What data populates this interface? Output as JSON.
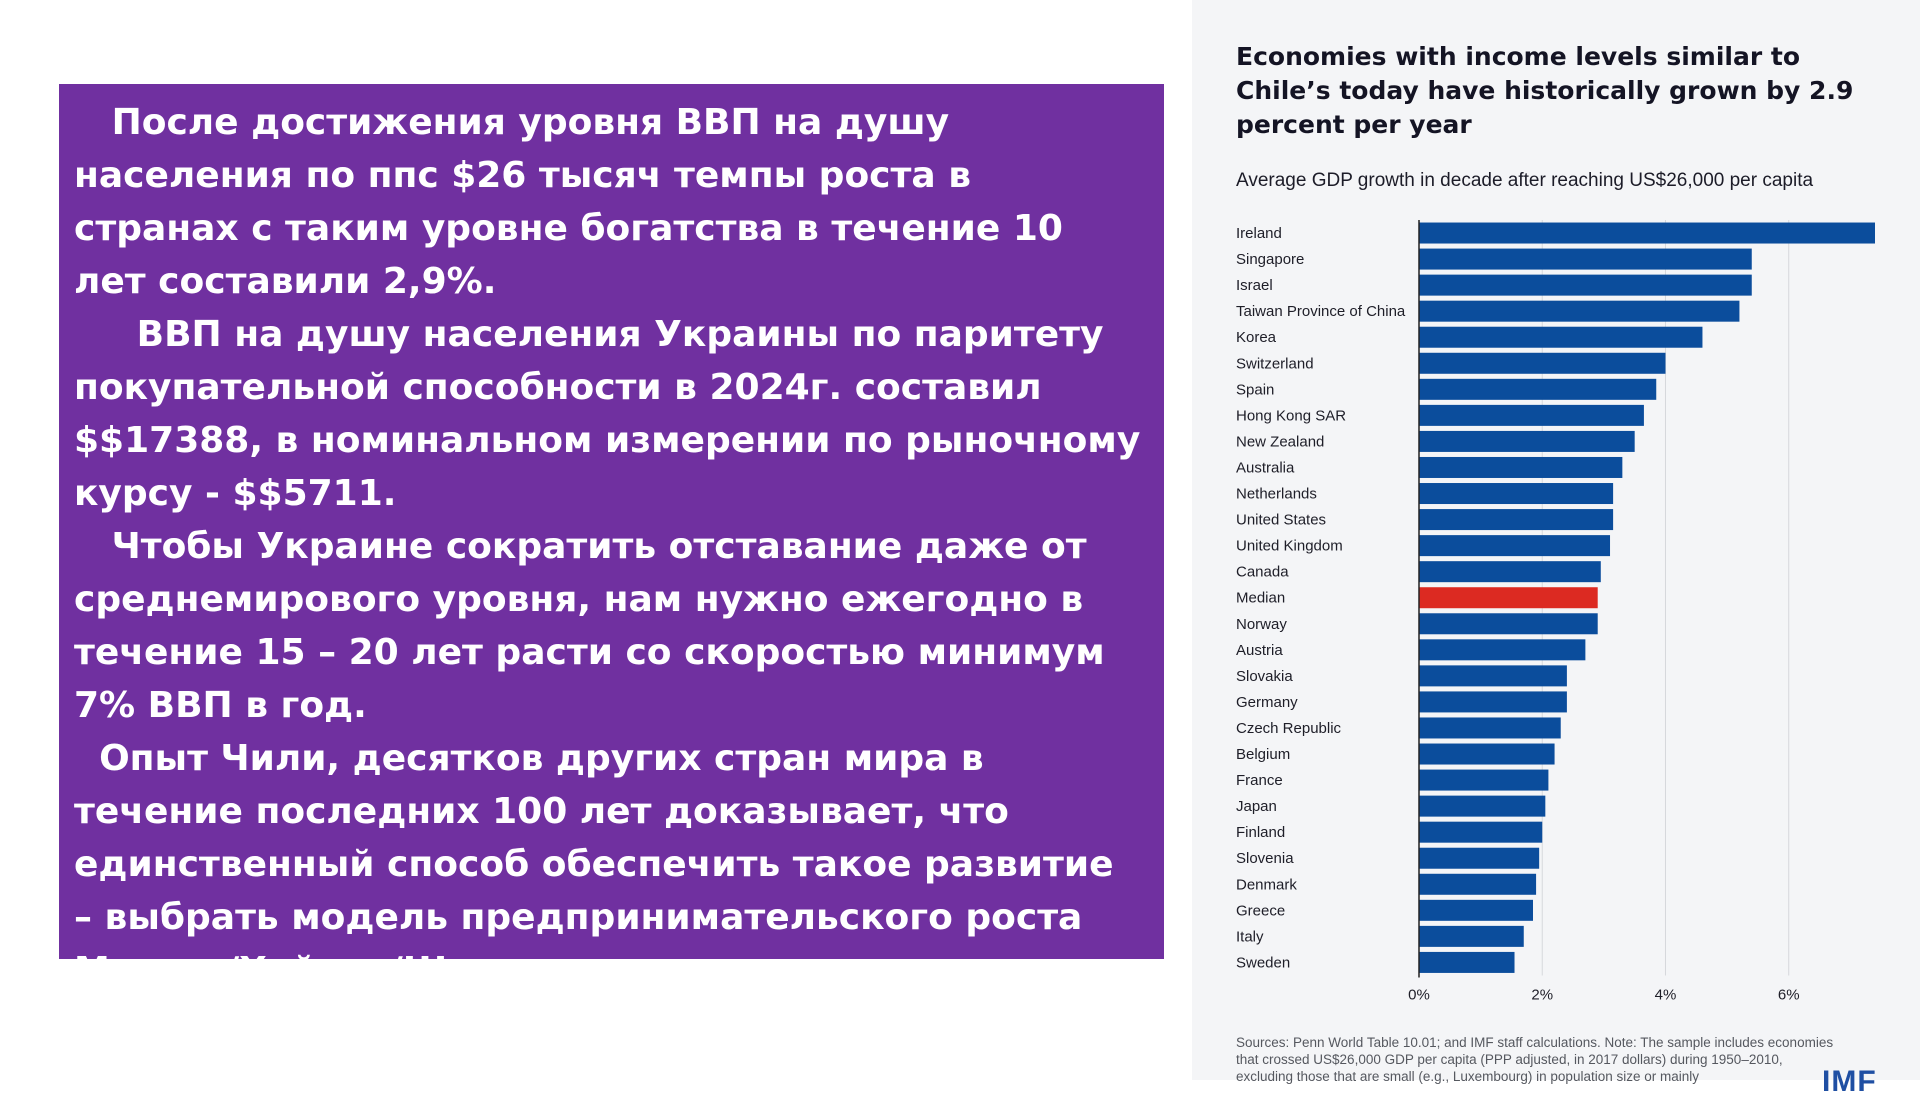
{
  "text_panel": {
    "paragraphs": [
      "   После достижения уровня ВВП на душу населения по ппс $26 тысяч темпы роста в странах с таким уровне богатства в течение 10 лет составили 2,9%.",
      "     ВВП на душу населения Украины по паритету покупательной способности в 2024г. составил $$17388, в номинальном измерении по рыночному курсу - $$5711.",
      "   Чтобы Украине сократить отставание даже от среднемирового уровня, нам нужно ежегодно в течение 15 – 20 лет расти со скоростью минимум 7% ВВП в год.",
      "  Опыт Чили, десятков других стран мира в течение последних 100 лет доказывает, что единственный способ обеспечить такое развитие – выбрать модель предпринимательского роста Мизеса/Хайека/Шумпетера."
    ]
  },
  "chart_data": {
    "type": "bar",
    "orientation": "horizontal",
    "title": "Economies with income levels similar to Chile’s today have historically grown by 2.9 percent per year",
    "subtitle": "Average GDP growth in decade after reaching US$26,000 per capita",
    "categories": [
      "Ireland",
      "Singapore",
      "Israel",
      "Taiwan Province of China",
      "Korea",
      "Switzerland",
      "Spain",
      "Hong Kong SAR",
      "New Zealand",
      "Australia",
      "Netherlands",
      "United States",
      "United Kingdom",
      "Canada",
      "Median",
      "Norway",
      "Austria",
      "Slovakia",
      "Germany",
      "Czech Republic",
      "Belgium",
      "France",
      "Japan",
      "Finland",
      "Slovenia",
      "Denmark",
      "Greece",
      "Italy",
      "Sweden"
    ],
    "values": [
      7.4,
      5.4,
      5.4,
      5.2,
      4.6,
      4.0,
      3.85,
      3.65,
      3.5,
      3.3,
      3.15,
      3.15,
      3.1,
      2.95,
      2.9,
      2.9,
      2.7,
      2.4,
      2.4,
      2.3,
      2.2,
      2.1,
      2.05,
      2.0,
      1.95,
      1.9,
      1.85,
      1.7,
      1.55
    ],
    "highlight_category": "Median",
    "x_ticks": [
      "0%",
      "2%",
      "4%",
      "6%"
    ],
    "x_tick_values": [
      0,
      2,
      4,
      6
    ],
    "xlim": [
      0,
      7.4
    ],
    "grid": "vertical",
    "xlabel": "",
    "ylabel": "",
    "colors": {
      "bar": "#0b4d9c",
      "highlight": "#dc2a22",
      "grid": "#d6d8dc",
      "axis": "#222222"
    },
    "source_note": "Sources: Penn World Table 10.01; and IMF staff calculations. Note: The sample includes economies that crossed US$26,000 GDP per capita (PPP adjusted, in 2017 dollars) during 1950–2010, excluding those that are small (e.g., Luxembourg) in population size or mainly",
    "logo": "IMF"
  }
}
